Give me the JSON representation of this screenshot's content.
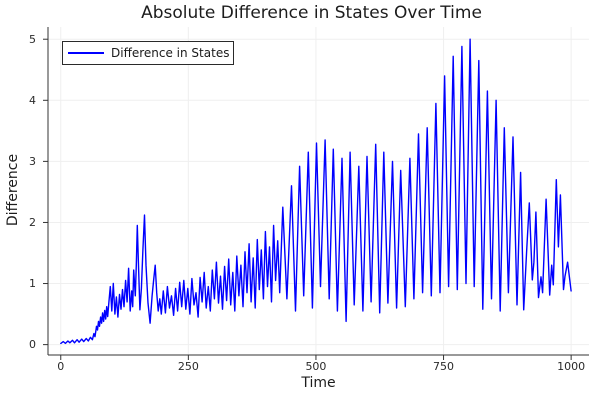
{
  "title": "Absolute Difference in States Over Time",
  "legend": {
    "label": "Difference in States",
    "position": "top-left",
    "border_color": "#2a2a2a"
  },
  "colors": {
    "line": "#0000ff",
    "grid": "#efefef",
    "spine": "#333333",
    "title_text": "#1c1c1c",
    "tick_text": "#2a2a2a",
    "background": "#ffffff"
  },
  "chart_data": {
    "type": "line",
    "title": "Absolute Difference in States Over Time",
    "xlabel": "Time",
    "ylabel": "Difference",
    "xlim": [
      -25,
      1035
    ],
    "ylim": [
      -0.17,
      5.2
    ],
    "xticks": [
      0,
      250,
      500,
      750,
      1000
    ],
    "yticks": [
      0,
      1,
      2,
      3,
      4,
      5
    ],
    "grid": true,
    "legend_position": "top-left",
    "series": [
      {
        "name": "Difference in States",
        "color": "#0000ff",
        "points": [
          [
            0,
            0.02
          ],
          [
            5,
            0.05
          ],
          [
            9,
            0.02
          ],
          [
            14,
            0.06
          ],
          [
            18,
            0.03
          ],
          [
            23,
            0.07
          ],
          [
            27,
            0.03
          ],
          [
            32,
            0.08
          ],
          [
            36,
            0.04
          ],
          [
            41,
            0.09
          ],
          [
            45,
            0.05
          ],
          [
            50,
            0.1
          ],
          [
            54,
            0.06
          ],
          [
            58,
            0.12
          ],
          [
            62,
            0.08
          ],
          [
            65,
            0.18
          ],
          [
            67,
            0.13
          ],
          [
            70,
            0.3
          ],
          [
            72,
            0.24
          ],
          [
            74,
            0.38
          ],
          [
            76,
            0.3
          ],
          [
            78,
            0.45
          ],
          [
            80,
            0.35
          ],
          [
            82,
            0.52
          ],
          [
            84,
            0.38
          ],
          [
            86,
            0.56
          ],
          [
            88,
            0.42
          ],
          [
            90,
            0.62
          ],
          [
            92,
            0.46
          ],
          [
            94,
            0.66
          ],
          [
            97,
            0.95
          ],
          [
            100,
            0.55
          ],
          [
            103,
            1.0
          ],
          [
            106,
            0.5
          ],
          [
            109,
            0.78
          ],
          [
            112,
            0.45
          ],
          [
            115,
            0.82
          ],
          [
            118,
            0.58
          ],
          [
            121,
            0.9
          ],
          [
            124,
            0.62
          ],
          [
            127,
            1.05
          ],
          [
            130,
            0.7
          ],
          [
            133,
            1.25
          ],
          [
            136,
            0.55
          ],
          [
            139,
            0.88
          ],
          [
            141,
            0.62
          ],
          [
            143,
            1.22
          ],
          [
            146,
            0.8
          ],
          [
            148,
            1.3
          ],
          [
            150,
            1.95
          ],
          [
            152,
            1.4
          ],
          [
            155,
            0.57
          ],
          [
            158,
            0.92
          ],
          [
            161,
            1.55
          ],
          [
            164,
            2.12
          ],
          [
            167,
            1.3
          ],
          [
            171,
            0.68
          ],
          [
            175,
            0.35
          ],
          [
            179,
            0.8
          ],
          [
            182,
            1.05
          ],
          [
            185,
            1.3
          ],
          [
            188,
            0.85
          ],
          [
            191,
            0.55
          ],
          [
            194,
            0.75
          ],
          [
            197,
            0.5
          ],
          [
            201,
            0.88
          ],
          [
            205,
            0.52
          ],
          [
            209,
            0.95
          ],
          [
            213,
            0.6
          ],
          [
            217,
            0.8
          ],
          [
            221,
            0.48
          ],
          [
            225,
            0.92
          ],
          [
            229,
            0.55
          ],
          [
            233,
            1.02
          ],
          [
            237,
            0.62
          ],
          [
            241,
            1.05
          ],
          [
            245,
            0.58
          ],
          [
            249,
            0.92
          ],
          [
            253,
            0.5
          ],
          [
            257,
            1.08
          ],
          [
            261,
            0.65
          ],
          [
            265,
            0.85
          ],
          [
            269,
            0.45
          ],
          [
            273,
            1.1
          ],
          [
            277,
            0.7
          ],
          [
            281,
            1.18
          ],
          [
            285,
            0.6
          ],
          [
            289,
            0.95
          ],
          [
            293,
            0.55
          ],
          [
            297,
            1.22
          ],
          [
            301,
            0.75
          ],
          [
            305,
            1.35
          ],
          [
            309,
            0.68
          ],
          [
            313,
            1.12
          ],
          [
            317,
            0.58
          ],
          [
            321,
            1.28
          ],
          [
            325,
            0.72
          ],
          [
            329,
            1.4
          ],
          [
            333,
            0.65
          ],
          [
            337,
            1.18
          ],
          [
            341,
            0.55
          ],
          [
            345,
            1.45
          ],
          [
            349,
            0.8
          ],
          [
            353,
            1.3
          ],
          [
            357,
            0.62
          ],
          [
            361,
            1.52
          ],
          [
            365,
            0.85
          ],
          [
            369,
            1.65
          ],
          [
            373,
            0.7
          ],
          [
            377,
            1.42
          ],
          [
            381,
            0.6
          ],
          [
            385,
            1.72
          ],
          [
            389,
            0.9
          ],
          [
            393,
            1.55
          ],
          [
            397,
            0.75
          ],
          [
            401,
            1.85
          ],
          [
            405,
            0.95
          ],
          [
            409,
            1.6
          ],
          [
            413,
            0.7
          ],
          [
            417,
            1.95
          ],
          [
            421,
            1.05
          ],
          [
            425,
            1.7
          ],
          [
            429,
            0.85
          ],
          [
            435,
            2.25
          ],
          [
            443,
            0.75
          ],
          [
            452,
            2.6
          ],
          [
            460,
            0.55
          ],
          [
            468,
            2.92
          ],
          [
            476,
            0.8
          ],
          [
            485,
            3.15
          ],
          [
            493,
            0.6
          ],
          [
            501,
            3.3
          ],
          [
            509,
            0.95
          ],
          [
            518,
            3.35
          ],
          [
            526,
            0.75
          ],
          [
            534,
            3.2
          ],
          [
            542,
            0.55
          ],
          [
            551,
            3.05
          ],
          [
            559,
            0.38
          ],
          [
            567,
            3.15
          ],
          [
            575,
            0.65
          ],
          [
            584,
            2.92
          ],
          [
            592,
            0.55
          ],
          [
            600,
            3.08
          ],
          [
            608,
            0.7
          ],
          [
            617,
            3.28
          ],
          [
            625,
            0.52
          ],
          [
            633,
            3.15
          ],
          [
            641,
            0.68
          ],
          [
            650,
            3.0
          ],
          [
            658,
            0.6
          ],
          [
            666,
            2.85
          ],
          [
            675,
            0.62
          ],
          [
            684,
            3.05
          ],
          [
            692,
            0.75
          ],
          [
            701,
            3.45
          ],
          [
            709,
            0.85
          ],
          [
            718,
            3.55
          ],
          [
            726,
            0.8
          ],
          [
            735,
            3.95
          ],
          [
            743,
            0.85
          ],
          [
            752,
            4.4
          ],
          [
            760,
            0.95
          ],
          [
            769,
            4.72
          ],
          [
            777,
            0.9
          ],
          [
            786,
            4.88
          ],
          [
            794,
            1.0
          ],
          [
            802,
            5.0
          ],
          [
            810,
            0.95
          ],
          [
            819,
            4.65
          ],
          [
            827,
            0.58
          ],
          [
            836,
            4.15
          ],
          [
            844,
            0.75
          ],
          [
            853,
            4.0
          ],
          [
            861,
            0.55
          ],
          [
            869,
            3.55
          ],
          [
            877,
            0.85
          ],
          [
            886,
            3.4
          ],
          [
            894,
            0.65
          ],
          [
            901,
            2.82
          ],
          [
            907,
            0.57
          ],
          [
            913,
            1.55
          ],
          [
            918,
            2.32
          ],
          [
            924,
            1.06
          ],
          [
            927,
            1.35
          ],
          [
            931,
            2.17
          ],
          [
            936,
            0.77
          ],
          [
            941,
            1.11
          ],
          [
            944,
            0.85
          ],
          [
            951,
            2.38
          ],
          [
            958,
            0.81
          ],
          [
            962,
            1.3
          ],
          [
            965,
            0.98
          ],
          [
            971,
            2.7
          ],
          [
            975,
            1.6
          ],
          [
            979,
            2.45
          ],
          [
            985,
            0.9
          ],
          [
            988,
            1.12
          ],
          [
            993,
            1.35
          ],
          [
            1000,
            0.88
          ]
        ]
      }
    ]
  }
}
